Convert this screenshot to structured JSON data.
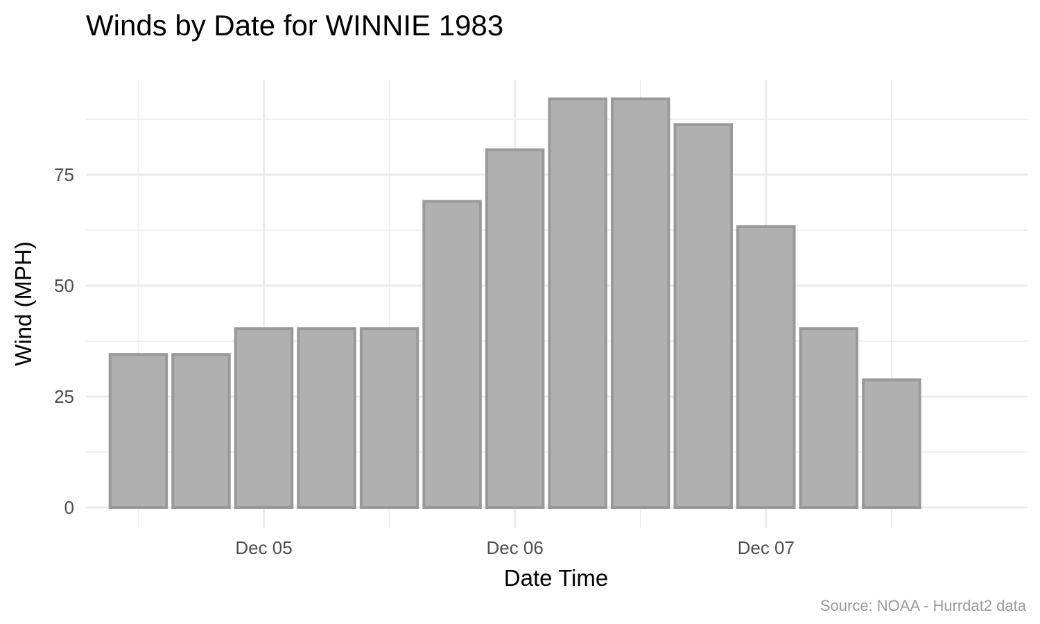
{
  "chart_data": {
    "type": "bar",
    "title": "Winds by Date for WINNIE 1983",
    "xlabel": "Date Time",
    "ylabel": "Wind (MPH)",
    "caption": "Source: NOAA - Hurrdat2 data",
    "x_ticks": [
      {
        "label": "Dec 05",
        "x": "1983-12-05T00:00"
      },
      {
        "label": "Dec 06",
        "x": "1983-12-06T00:00"
      },
      {
        "label": "Dec 07",
        "x": "1983-12-07T00:00"
      }
    ],
    "y_ticks": [
      0,
      25,
      50,
      75
    ],
    "xlim": [
      "1983-12-04T07:00",
      "1983-12-08T01:00"
    ],
    "ylim": [
      0,
      94
    ],
    "grid": true,
    "legend": "none",
    "colors": {
      "fill": "#b0b0b0",
      "outline": "#999999",
      "grid": "#ebebeb"
    },
    "x": [
      "1983-12-04T12:00",
      "1983-12-04T18:00",
      "1983-12-05T00:00",
      "1983-12-05T06:00",
      "1983-12-05T12:00",
      "1983-12-05T18:00",
      "1983-12-06T00:00",
      "1983-12-06T06:00",
      "1983-12-06T12:00",
      "1983-12-06T18:00",
      "1983-12-07T00:00",
      "1983-12-07T06:00",
      "1983-12-07T12:00"
    ],
    "values": [
      34.5,
      34.5,
      40.3,
      40.3,
      40.3,
      69.0,
      80.6,
      92.1,
      92.1,
      86.3,
      63.3,
      40.3,
      28.8
    ]
  }
}
